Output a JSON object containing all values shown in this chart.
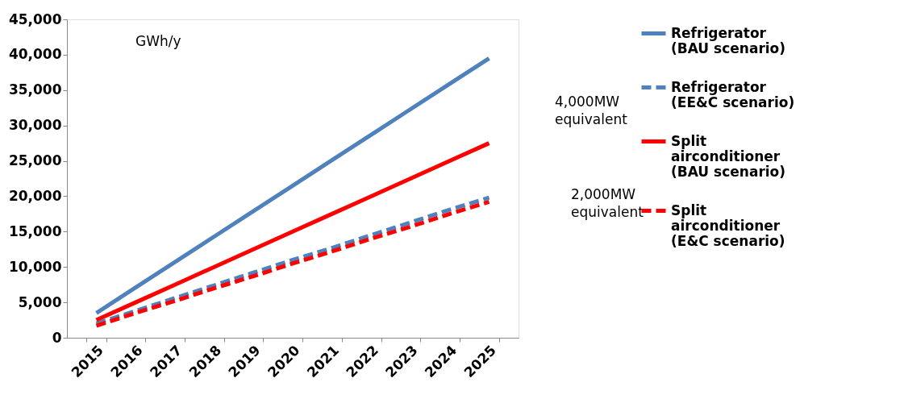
{
  "chart_data": {
    "type": "line",
    "categories": [
      "2015",
      "2016",
      "2017",
      "2018",
      "2019",
      "2020",
      "2021",
      "2022",
      "2023",
      "2024",
      "2025"
    ],
    "series": [
      {
        "name": "Refrigerator (BAU scenario)",
        "color": "#4f81bd",
        "line_style": "solid",
        "values": [
          3500,
          7100,
          10700,
          14300,
          17900,
          21500,
          25100,
          28700,
          32300,
          35900,
          39500
        ]
      },
      {
        "name": "Refrigerator (EE&C scenario)",
        "color": "#4f81bd",
        "line_style": "dashed",
        "values": [
          2000,
          3800,
          5600,
          7400,
          9200,
          11000,
          12700,
          14500,
          16300,
          18100,
          19800
        ]
      },
      {
        "name": "Split airconditioner (BAU scenario)",
        "color": "#ff0000",
        "line_style": "solid",
        "values": [
          2500,
          5000,
          7500,
          10000,
          12500,
          15000,
          17500,
          20000,
          22500,
          25000,
          27500
        ]
      },
      {
        "name": "Split airconditioner (E&C scenario)",
        "color": "#ff0000",
        "line_style": "dashed",
        "values": [
          1700,
          3500,
          5200,
          7000,
          8700,
          10500,
          12200,
          14000,
          15700,
          17500,
          19200
        ]
      }
    ],
    "ylim": [
      0,
      45000
    ],
    "yticks": [
      0,
      {
        "value": 5000,
        "label": "5,000"
      },
      {
        "value": 10000,
        "label": "10,000"
      },
      {
        "value": 15000,
        "label": "15,000"
      },
      {
        "value": 20000,
        "label": "20,000"
      },
      {
        "value": 25000,
        "label": "25,000"
      },
      {
        "value": 30000,
        "label": "30,000"
      },
      {
        "value": 35000,
        "label": "35,000"
      },
      {
        "value": 40000,
        "label": "40,000"
      },
      {
        "value": 45000,
        "label": "45,000"
      }
    ],
    "grid": false,
    "legend": "right",
    "marker": "none",
    "annotations": [
      "GWh/y",
      "4,000MW equivalent",
      "2,000MW equivalent"
    ]
  }
}
